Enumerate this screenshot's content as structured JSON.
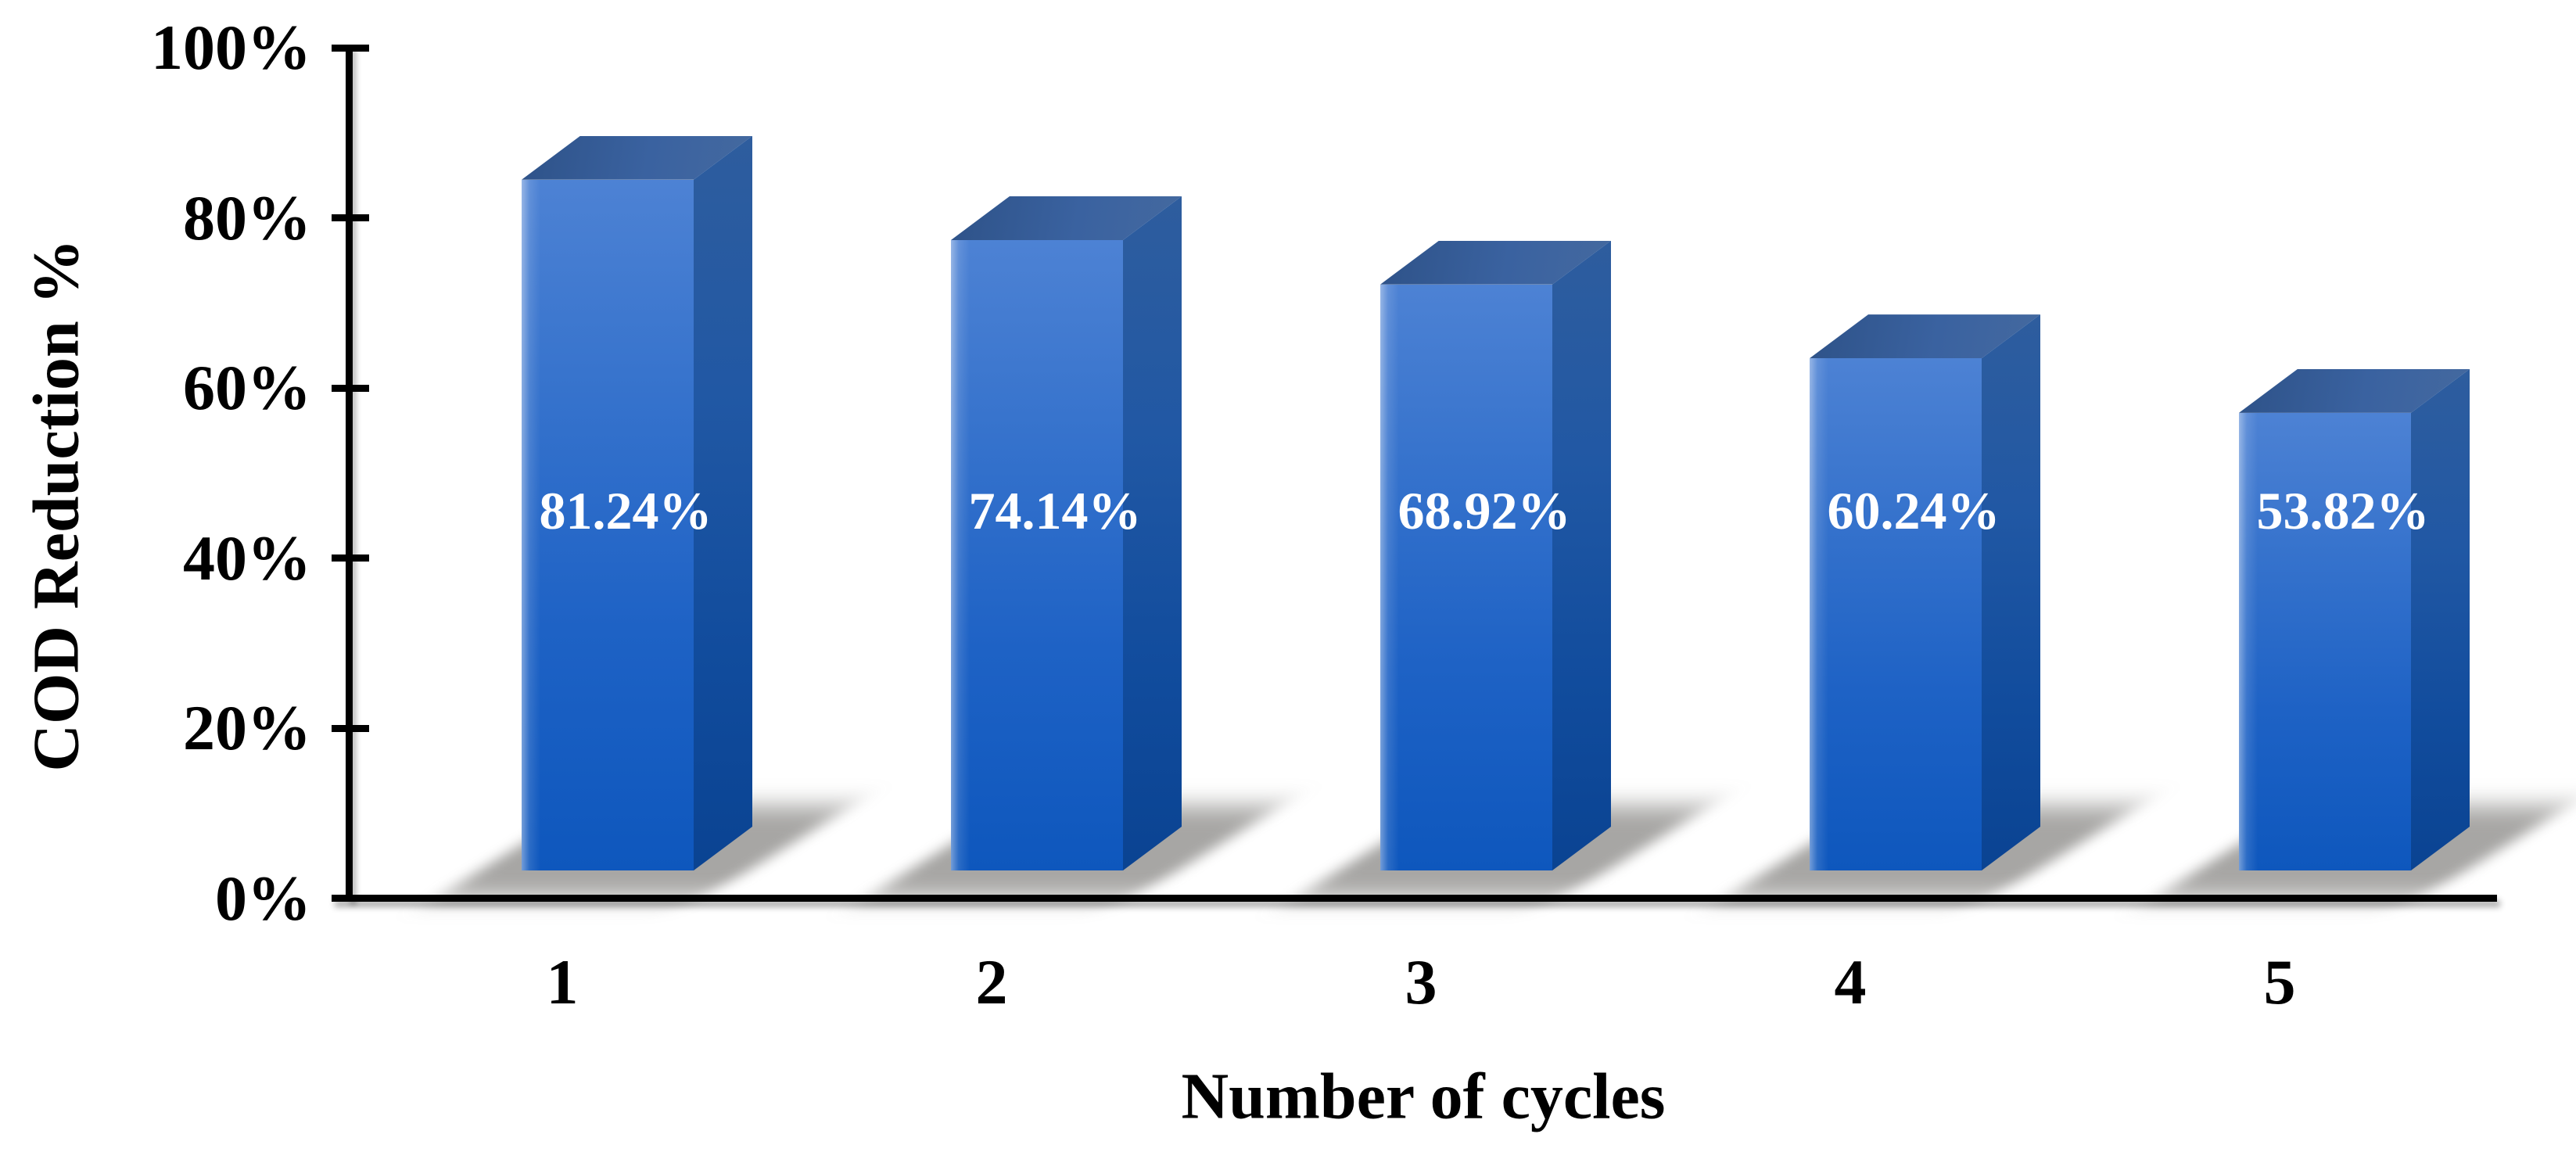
{
  "chart_data": {
    "type": "bar",
    "style": "3d-column",
    "title": "",
    "xlabel": "Number of cycles",
    "ylabel": "COD Reduction %",
    "categories": [
      "1",
      "2",
      "3",
      "4",
      "5"
    ],
    "values": [
      81.24,
      74.14,
      68.92,
      60.24,
      53.82
    ],
    "bar_labels": [
      "81.24%",
      "74.14%",
      "68.92%",
      "60.24%",
      "53.82%"
    ],
    "ylim": [
      0,
      100
    ],
    "ytick_step": 20,
    "yticks": [
      "0%",
      "20%",
      "40%",
      "60%",
      "80%",
      "100%"
    ],
    "grid": false,
    "legend": false,
    "colors": {
      "background": "#ffffff",
      "axis": "#000000",
      "tick_label": "#000000",
      "bar_label": "#ffffff",
      "shadow": "rgba(104,102,98,0.58)",
      "bar_front_stops": [
        "#4d82d4",
        "#3572cc",
        "#1e62c5",
        "#0e57bd"
      ],
      "bar_side_stops": [
        "#2e5d9e",
        "#2158a4",
        "#114c9d",
        "#0a4392"
      ],
      "bar_top_stops": [
        "#2e5288",
        "#3a62a0",
        "#44699f"
      ]
    }
  }
}
